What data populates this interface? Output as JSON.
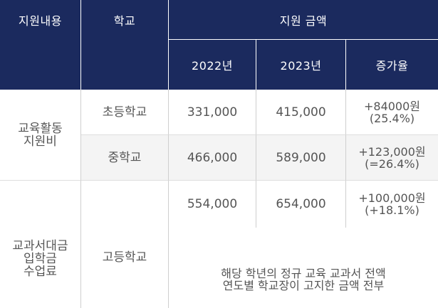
{
  "header": {
    "col1": "지원내용",
    "col2": "학교",
    "col3": "지원 금액",
    "year1": "2022년",
    "year2": "2023년",
    "rate": "증가율"
  },
  "groups": [
    {
      "label_lines": [
        "교육활동",
        "지원비"
      ],
      "rows": [
        {
          "school": "초등학교",
          "y2022": "331,000",
          "y2023": "415,000",
          "rate_lines": [
            "+84000원",
            "(25.4%)"
          ],
          "shaded": false
        },
        {
          "school": "중학교",
          "y2022": "466,000",
          "y2023": "589,000",
          "rate_lines": [
            "+123,000원",
            "(=26.4%)"
          ],
          "shaded": true
        }
      ]
    },
    {
      "label_lines": [
        "교과서대금",
        "입학금",
        "수업료"
      ],
      "school": "고등학교",
      "rows": [
        {
          "y2022": "554,000",
          "y2023": "654,000",
          "rate_lines": [
            "+100,000원",
            "(+18.1%)"
          ]
        }
      ],
      "note_lines": [
        "해당 학년의 정규 교육 교과서 전액",
        "연도별 학교장이 고지한 금액 전부"
      ]
    }
  ]
}
